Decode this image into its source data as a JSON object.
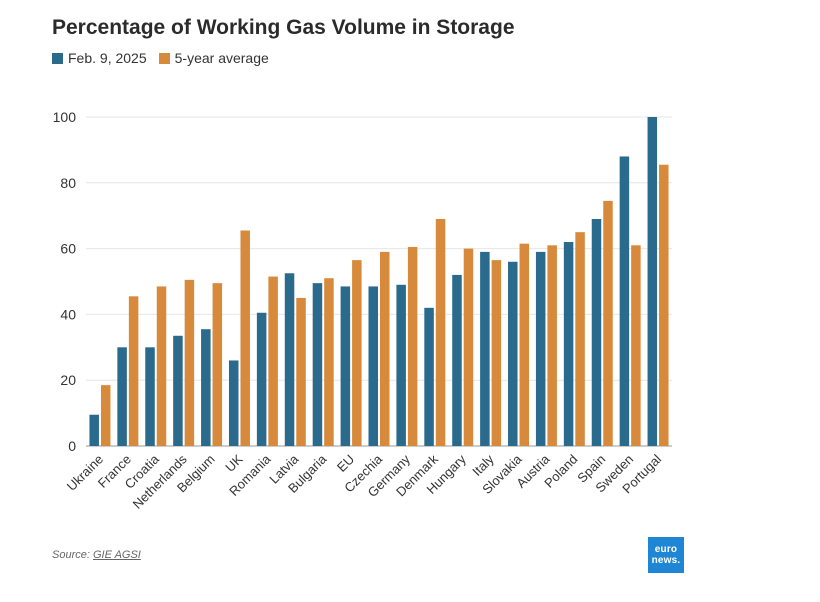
{
  "chart_data": {
    "type": "bar",
    "title": "Percentage of Working Gas Volume in Storage",
    "xlabel": "",
    "ylabel": "",
    "ylim": [
      0,
      110
    ],
    "yticks": [
      0,
      20,
      40,
      60,
      80,
      100
    ],
    "legend_position": "top-left",
    "grid": true,
    "categories": [
      "Ukraine",
      "France",
      "Croatia",
      "Netherlands",
      "Belgium",
      "UK",
      "Romania",
      "Latvia",
      "Bulgaria",
      "EU",
      "Czechia",
      "Germany",
      "Denmark",
      "Hungary",
      "Italy",
      "Slovakia",
      "Austria",
      "Poland",
      "Spain",
      "Sweden",
      "Portugal"
    ],
    "series": [
      {
        "name": "Feb. 9, 2025",
        "color": "#2a6a8c",
        "values": [
          9.5,
          30,
          30,
          33.5,
          35.5,
          26,
          40.5,
          52.5,
          49.5,
          48.5,
          48.5,
          49,
          42,
          52,
          59,
          56,
          59,
          62,
          69,
          88,
          100
        ]
      },
      {
        "name": "5-year average",
        "color": "#d88a3c",
        "values": [
          18.5,
          45.5,
          48.5,
          50.5,
          49.5,
          65.5,
          51.5,
          45,
          51,
          56.5,
          59,
          60.5,
          69,
          60,
          56.5,
          61.5,
          61,
          65,
          74.5,
          61,
          85.5
        ]
      }
    ]
  },
  "legend": {
    "item1": "Feb. 9, 2025",
    "item2": "5-year average"
  },
  "source": {
    "prefix": "Source: ",
    "link": "GIE AGSI"
  },
  "logo": {
    "line1": "euro",
    "line2": "news."
  }
}
